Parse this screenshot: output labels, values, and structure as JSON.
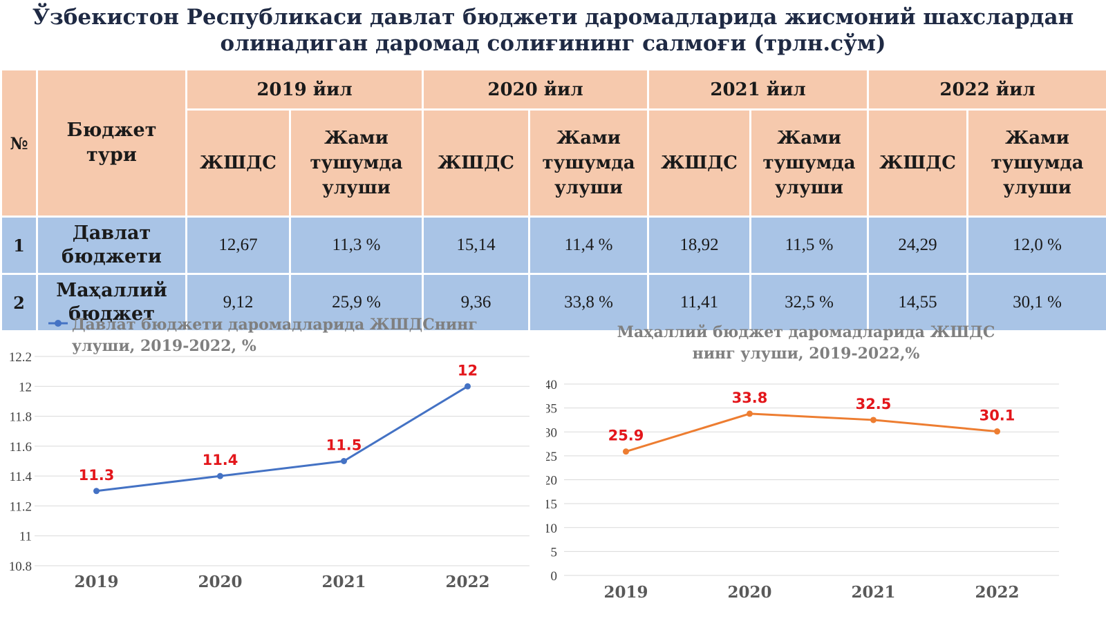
{
  "title": {
    "line1": "Ўзбекистон Республикаси давлат бюджети даромадларида жисмоний шахслардан",
    "line2": "олинадиган даромад солиғининг салмоғи (трлн.сўм)"
  },
  "table": {
    "no_header": "№",
    "type_header": "Бюджет тури",
    "years": [
      "2019 йил",
      "2020 йил",
      "2021 йил",
      "2022 йил"
    ],
    "sub_a": "ЖШДС",
    "sub_b": "Жами тушумда улуши",
    "rows": [
      {
        "no": "1",
        "name": "Давлат бюджети",
        "values": [
          "12,67",
          "11,3 %",
          "15,14",
          "11,4 %",
          "18,92",
          "11,5 %",
          "24,29",
          "12,0 %"
        ]
      },
      {
        "no": "2",
        "name": "Маҳаллий бюджет",
        "values": [
          "9,12",
          "25,9 %",
          "9,36",
          "33,8 %",
          "11,41",
          "32,5 %",
          "14,55",
          "30,1 %"
        ]
      }
    ]
  },
  "colors": {
    "header_bg": "#f6c9ad",
    "row_bg": "#a9c4e6",
    "line1": "#4472c4",
    "line2": "#ed7d31",
    "label": "#e3161b"
  },
  "chart_data": [
    {
      "type": "line",
      "title": "Давлат бюджети даромадларида ЖШДСнинг улуши, 2019-2022, %",
      "legend_marker": "line-with-dot",
      "categories": [
        "2019",
        "2020",
        "2021",
        "2022"
      ],
      "series": [
        {
          "values": [
            11.3,
            11.4,
            11.5,
            12
          ]
        }
      ],
      "data_labels": [
        "11.3",
        "11.4",
        "11.5",
        "12"
      ],
      "y_ticks": [
        "10.8",
        "11",
        "11.2",
        "11.4",
        "11.6",
        "11.8",
        "12",
        "12.2"
      ],
      "ylim": [
        10.8,
        12.2
      ],
      "grid": true
    },
    {
      "type": "line",
      "title": "Маҳаллий бюджет даромадларида ЖШДС нинг улуши, 2019-2022,%",
      "categories": [
        "2019",
        "2020",
        "2021",
        "2022"
      ],
      "series": [
        {
          "values": [
            25.9,
            33.8,
            32.5,
            30.1
          ]
        }
      ],
      "data_labels": [
        "25.9",
        "33.8",
        "32.5",
        "30.1"
      ],
      "y_ticks": [
        "0",
        "5",
        "10",
        "15",
        "20",
        "25",
        "30",
        "35",
        "40"
      ],
      "ylim": [
        0,
        40
      ],
      "grid": true
    }
  ]
}
